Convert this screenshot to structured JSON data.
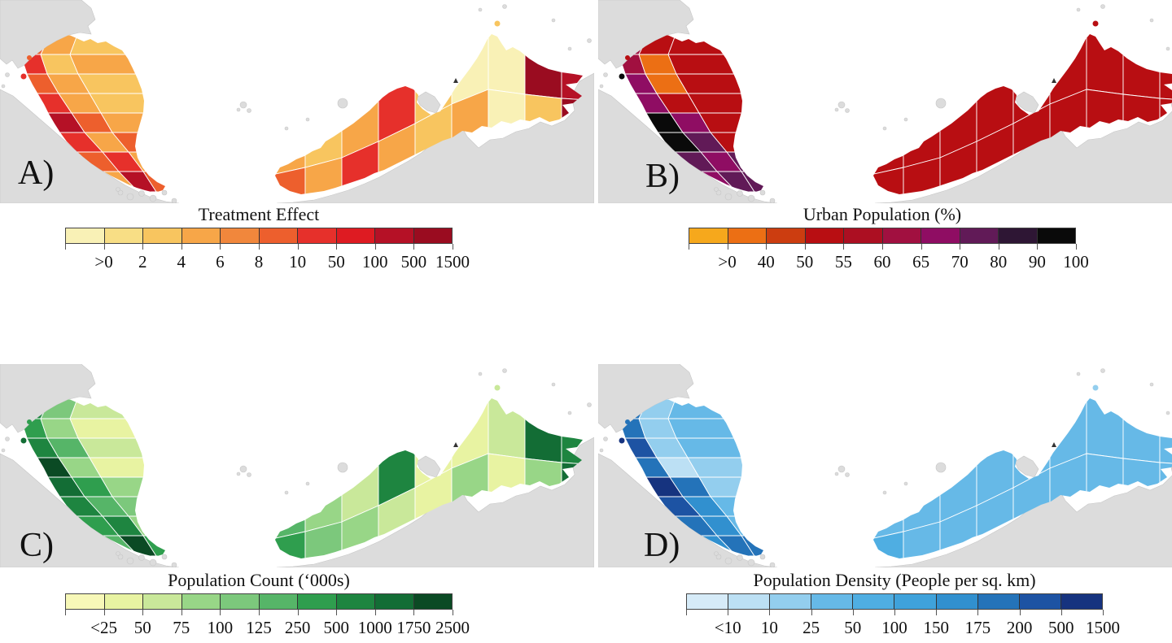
{
  "page": {
    "background": "#ffffff",
    "sea_color": "#ffffff",
    "neighbor_land_color": "#dcdcdc",
    "district_border_color": "#ffffff"
  },
  "panels": [
    {
      "id": "A",
      "label": "A)",
      "legend_title": "Treatment Effect",
      "tick_labels": [
        ">0",
        "2",
        "4",
        "6",
        "8",
        "10",
        "50",
        "100",
        "500",
        "1500"
      ],
      "colorbar_colors": [
        "#F9F1B6",
        "#F8DE85",
        "#F8C55F",
        "#F7A648",
        "#F1873C",
        "#ED5F2D",
        "#E6302B",
        "#DE1B22",
        "#B51126",
        "#9A0C20"
      ],
      "peninsula_fills": [
        "#ED5F2D",
        "#F7A648",
        "#F8C55F",
        "#E6302B",
        "#F8C55F",
        "#F7A648",
        "#ED5F2D",
        "#F7A648",
        "#F8C55F",
        "#E6302B",
        "#F7A648",
        "#F8C55F",
        "#B51126",
        "#ED5F2D",
        "#F7A648",
        "#E6302B",
        "#F7A648",
        "#ED5F2D",
        "#ED5F2D",
        "#E6302B",
        "#F7A648",
        "#F7A648",
        "#B51126",
        "#ED5F2D"
      ],
      "borneo_fills": [
        "#F7A648",
        "#F8C55F",
        "#F7A648",
        "#E6302B",
        "#F8C55F",
        "#F9F1B6",
        "#F9F1B6",
        "#9A0C20",
        "#B51126",
        "#ED5F2D",
        "#F7A648",
        "#E6302B",
        "#F7A648",
        "#F8C55F",
        "#F7A648",
        "#F9F1B6",
        "#F8C55F",
        "#9A0C20"
      ],
      "island_fills": [
        "#ED5F2D",
        "#E6302B",
        "#F8C55F"
      ]
    },
    {
      "id": "B",
      "label": "B)",
      "legend_title": "Urban Population (%)",
      "tick_labels": [
        ">0",
        "40",
        "50",
        "55",
        "60",
        "65",
        "70",
        "80",
        "90",
        "100"
      ],
      "colorbar_colors": [
        "#F6A81C",
        "#EC6F14",
        "#CC3D10",
        "#B80E12",
        "#AC0F22",
        "#A11040",
        "#8F0D63",
        "#611A57",
        "#2E1634",
        "#0A0A0A"
      ],
      "peninsula_fills": [
        "#A11040",
        "#B80E12",
        "#B80E12",
        "#A11040",
        "#EC6F14",
        "#B80E12",
        "#8F0D63",
        "#EC6F14",
        "#B80E12",
        "#8F0D63",
        "#B80E12",
        "#B80E12",
        "#0A0A0A",
        "#8F0D63",
        "#B80E12",
        "#0A0A0A",
        "#611A57",
        "#B80E12",
        "#611A57",
        "#8F0D63",
        "#611A57",
        "#8F0D63",
        "#611A57",
        "#611A57"
      ],
      "borneo_fills": [
        "#B80E12",
        "#B80E12",
        "#B80E12",
        "#B80E12",
        "#B80E12",
        "#B80E12",
        "#B80E12",
        "#B80E12",
        "#B80E12",
        "#B80E12",
        "#B80E12",
        "#B80E12",
        "#B80E12",
        "#B80E12",
        "#B80E12",
        "#B80E12",
        "#B80E12",
        "#B80E12"
      ],
      "island_fills": [
        "#B80E12",
        "#0A0A0A",
        "#B80E12"
      ]
    },
    {
      "id": "C",
      "label": "C)",
      "legend_title": "Population Count (‘000s)",
      "tick_labels": [
        "<25",
        "50",
        "75",
        "100",
        "125",
        "250",
        "500",
        "1000",
        "1750",
        "2500"
      ],
      "colorbar_colors": [
        "#F7F8B8",
        "#E8F3A2",
        "#C9E89A",
        "#98D687",
        "#7CC87C",
        "#56B568",
        "#2F9E4E",
        "#1E8540",
        "#136D35",
        "#0B4A24"
      ],
      "peninsula_fills": [
        "#1E8540",
        "#7CC87C",
        "#C9E89A",
        "#2F9E4E",
        "#98D687",
        "#E8F3A2",
        "#1E8540",
        "#56B568",
        "#C9E89A",
        "#0B4A24",
        "#98D687",
        "#E8F3A2",
        "#136D35",
        "#2F9E4E",
        "#98D687",
        "#1E8540",
        "#56B568",
        "#7CC87C",
        "#2F9E4E",
        "#1E8540",
        "#98D687",
        "#56B568",
        "#0B4A24",
        "#2F9E4E"
      ],
      "borneo_fills": [
        "#56B568",
        "#98D687",
        "#C9E89A",
        "#1E8540",
        "#E8F3A2",
        "#E8F3A2",
        "#C9E89A",
        "#136D35",
        "#1E8540",
        "#2F9E4E",
        "#7CC87C",
        "#98D687",
        "#C9E89A",
        "#E8F3A2",
        "#98D687",
        "#E8F3A2",
        "#98D687",
        "#136D35"
      ],
      "island_fills": [
        "#2F9E4E",
        "#136D35",
        "#C9E89A"
      ]
    },
    {
      "id": "D",
      "label": "D)",
      "legend_title": "Population Density (People per sq. km)",
      "tick_labels": [
        "<10",
        "10",
        "25",
        "50",
        "100",
        "150",
        "175",
        "200",
        "500",
        "1500"
      ],
      "colorbar_colors": [
        "#D6EBF8",
        "#BCE0F4",
        "#93CEEE",
        "#66B9E7",
        "#4FAEE2",
        "#3FA2DB",
        "#3190CF",
        "#2473B9",
        "#1D53A3",
        "#16337F"
      ],
      "peninsula_fills": [
        "#2473B9",
        "#93CEEE",
        "#66B9E7",
        "#2473B9",
        "#93CEEE",
        "#66B9E7",
        "#1D53A3",
        "#93CEEE",
        "#66B9E7",
        "#2473B9",
        "#BCE0F4",
        "#93CEEE",
        "#16337F",
        "#2473B9",
        "#93CEEE",
        "#1D53A3",
        "#3190CF",
        "#66B9E7",
        "#2473B9",
        "#3190CF",
        "#66B9E7",
        "#3190CF",
        "#2473B9",
        "#2473B9"
      ],
      "borneo_fills": [
        "#66B9E7",
        "#66B9E7",
        "#66B9E7",
        "#66B9E7",
        "#66B9E7",
        "#66B9E7",
        "#66B9E7",
        "#66B9E7",
        "#66B9E7",
        "#4FAEE2",
        "#66B9E7",
        "#66B9E7",
        "#66B9E7",
        "#66B9E7",
        "#66B9E7",
        "#66B9E7",
        "#66B9E7",
        "#66B9E7"
      ],
      "island_fills": [
        "#2473B9",
        "#16337F",
        "#93CEEE"
      ]
    }
  ],
  "chart_data": [
    {
      "type": "heatmap",
      "subtype": "choropleth_map",
      "panel": "A",
      "title": "Treatment Effect",
      "region": "Malaysia districts (Peninsular Malaysia and East Malaysia)",
      "legend_bins": [
        ">0",
        "2",
        "4",
        "6",
        "8",
        "10",
        "50",
        "100",
        "500",
        "1500"
      ],
      "legend_colors": [
        "#F9F1B6",
        "#F8DE85",
        "#F8C55F",
        "#F7A648",
        "#F1873C",
        "#ED5F2D",
        "#E6302B",
        "#DE1B22",
        "#B51126",
        "#9A0C20"
      ],
      "legend_position": "below map",
      "notes": "Peninsula mostly orange (4-10) with red/dark-red pockets near Kuala Lumpur and south Johor; Borneo mostly pale yellow-orange with dark red in northeast Sabah."
    },
    {
      "type": "heatmap",
      "subtype": "choropleth_map",
      "panel": "B",
      "title": "Urban Population (%)",
      "region": "Malaysia districts",
      "legend_bins": [
        ">0",
        "40",
        "50",
        "55",
        "60",
        "65",
        "70",
        "80",
        "90",
        "100"
      ],
      "legend_colors": [
        "#F6A81C",
        "#EC6F14",
        "#CC3D10",
        "#B80E12",
        "#AC0F22",
        "#A11040",
        "#8F0D63",
        "#611A57",
        "#2E1634",
        "#0A0A0A"
      ],
      "legend_position": "below map",
      "notes": "East Malaysia uniformly dark red (~50-55%); peninsula mixes red interior, orange north-center, purple west and south, black around Kuala Lumpur (near 100%)."
    },
    {
      "type": "heatmap",
      "subtype": "choropleth_map",
      "panel": "C",
      "title": "Population Count (‘000s)",
      "region": "Malaysia districts",
      "legend_bins": [
        "<25",
        "50",
        "75",
        "100",
        "125",
        "250",
        "500",
        "1000",
        "1750",
        "2500"
      ],
      "legend_colors": [
        "#F7F8B8",
        "#E8F3A2",
        "#C9E89A",
        "#98D687",
        "#7CC87C",
        "#56B568",
        "#2F9E4E",
        "#1E8540",
        "#136D35",
        "#0B4A24"
      ],
      "legend_position": "below map",
      "notes": "Peninsula mid-to-dark greens with darkest cells near Kuala Lumpur and south Johor; Borneo mostly light green with darker districts near Kuching and northeast Sabah."
    },
    {
      "type": "heatmap",
      "subtype": "choropleth_map",
      "panel": "D",
      "title": "Population Density (People per sq. km)",
      "region": "Malaysia districts",
      "legend_bins": [
        "<10",
        "10",
        "25",
        "50",
        "100",
        "150",
        "175",
        "200",
        "500",
        "1500"
      ],
      "legend_colors": [
        "#D6EBF8",
        "#BCE0F4",
        "#93CEEE",
        "#66B9E7",
        "#4FAEE2",
        "#3FA2DB",
        "#3190CF",
        "#2473B9",
        "#1D53A3",
        "#16337F"
      ],
      "legend_position": "below map",
      "notes": "Borneo uniform light sky blue (low density); peninsula light interior with darker blue west coast and navy cluster at Kuala Lumpur."
    }
  ]
}
